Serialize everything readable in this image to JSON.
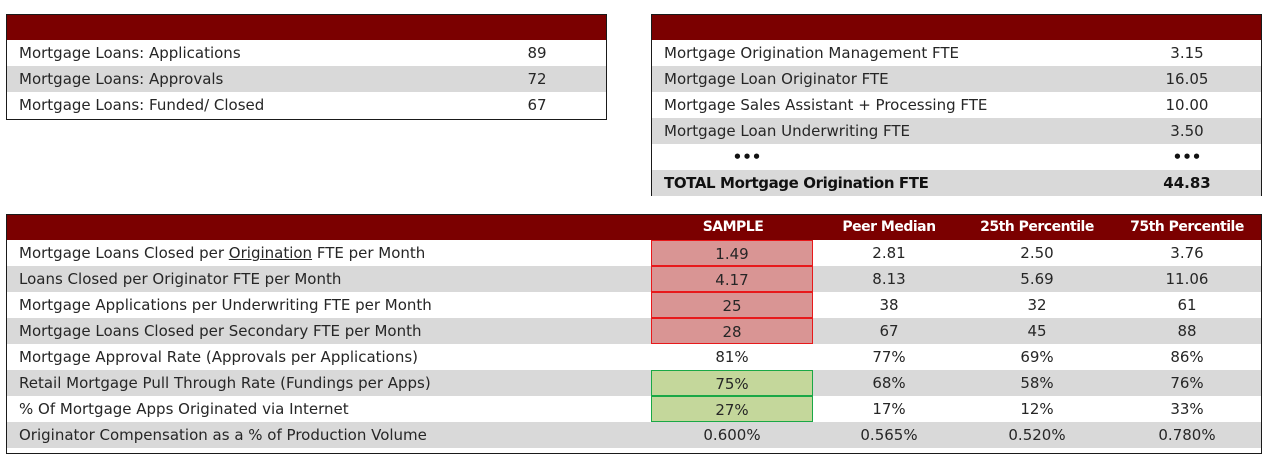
{
  "volume_table": {
    "rows": [
      {
        "label": "Mortgage Loans: Applications",
        "value": "89"
      },
      {
        "label": "Mortgage Loans: Approvals",
        "value": "72"
      },
      {
        "label": "Mortgage Loans: Funded/ Closed",
        "value": "67"
      }
    ]
  },
  "fte_table": {
    "rows": [
      {
        "label": "Mortgage Origination Management FTE",
        "value": "3.15"
      },
      {
        "label": "Mortgage Loan Originator FTE",
        "value": "16.05"
      },
      {
        "label": "Mortgage Sales Assistant + Processing FTE",
        "value": "10.00"
      },
      {
        "label": "Mortgage Loan Underwriting FTE",
        "value": "3.50"
      },
      {
        "label": "•••",
        "value": "•••"
      }
    ],
    "total": {
      "label": "TOTAL Mortgage Origination FTE",
      "value": "44.83"
    }
  },
  "metrics_table": {
    "columns": [
      "SAMPLE",
      "Peer Median",
      "25th Percentile",
      "75th Percentile"
    ],
    "rows": [
      {
        "label_pre": "Mortgage Loans Closed per ",
        "label_u": "Origination",
        "label_post": " FTE per Month",
        "sample": "1.49",
        "median": "2.81",
        "p25": "2.50",
        "p75": "3.76"
      },
      {
        "label": "Loans Closed per Originator FTE per Month",
        "sample": "4.17",
        "median": "8.13",
        "p25": "5.69",
        "p75": "11.06"
      },
      {
        "label": "Mortgage Applications per Underwriting FTE per Month",
        "sample": "25",
        "median": "38",
        "p25": "32",
        "p75": "61"
      },
      {
        "label": "Mortgage Loans Closed per Secondary FTE per Month",
        "sample": "28",
        "median": "67",
        "p25": "45",
        "p75": "88"
      },
      {
        "label": "Mortgage Approval Rate (Approvals per Applications)",
        "sample": "81%",
        "median": "77%",
        "p25": "69%",
        "p75": "86%"
      },
      {
        "label": "Retail Mortgage Pull Through Rate (Fundings per Apps)",
        "sample": "75%",
        "median": "68%",
        "p25": "58%",
        "p75": "76%"
      },
      {
        "label": "% Of Mortgage Apps Originated via Internet",
        "sample": "27%",
        "median": "17%",
        "p25": "12%",
        "p75": "33%"
      },
      {
        "label": "Originator Compensation as a % of Production Volume",
        "sample": "0.600%",
        "median": "0.565%",
        "p25": "0.520%",
        "p75": "0.780%"
      }
    ],
    "highlight_colors": {
      "red_fill": "#d99594",
      "red_border": "#e8191b",
      "green_fill": "#c4d79b",
      "green_border": "#1aa846"
    }
  },
  "colors": {
    "header": "#7b0000",
    "alt_row": "#d9d9d9"
  }
}
